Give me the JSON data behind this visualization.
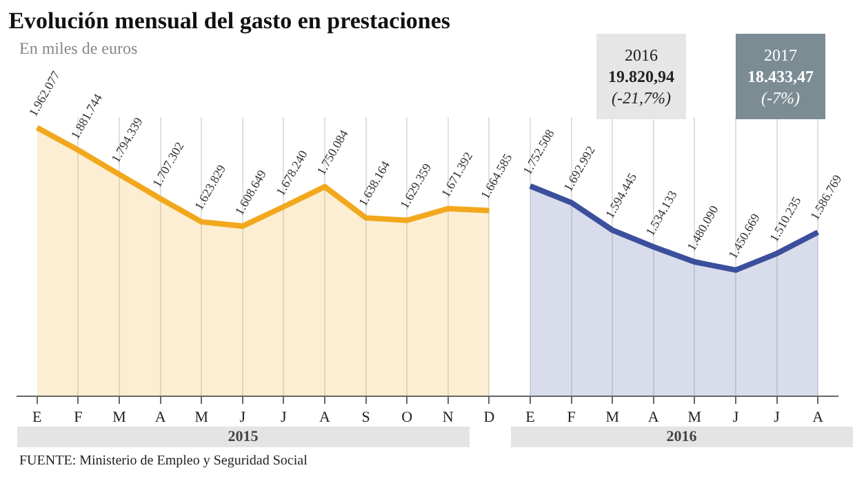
{
  "chart_data": {
    "type": "area",
    "title": "Evolución mensual del gasto en prestaciones",
    "subtitle": "En miles de euros",
    "categories": [
      "E",
      "F",
      "M",
      "A",
      "M",
      "J",
      "J",
      "A",
      "S",
      "O",
      "N",
      "D",
      "E",
      "F",
      "M",
      "A",
      "M",
      "J",
      "J",
      "A"
    ],
    "series": [
      {
        "name": null,
        "color": "#f2a81d",
        "values": [
          1962077,
          1881744,
          1794339,
          1707302,
          1623829,
          1608649,
          1678240,
          1750084,
          1638164,
          1629359,
          1671392,
          1664585,
          null,
          null,
          null,
          null,
          null,
          null,
          null,
          null
        ],
        "value_labels": [
          "1.962.077",
          "1.881.744",
          "1.794.339",
          "1.707.302",
          "1.623.829",
          "1.608.649",
          "1.678.240",
          "1.750.084",
          "1.638.164",
          "1.629.359",
          "1.671.392",
          "1.664.585",
          null,
          null,
          null,
          null,
          null,
          null,
          null,
          null
        ]
      },
      {
        "name": null,
        "color": "#3b4f9c",
        "values": [
          null,
          null,
          null,
          null,
          null,
          null,
          null,
          null,
          null,
          null,
          null,
          null,
          1752508,
          1692992,
          1594445,
          1534133,
          1480090,
          1450669,
          1510235,
          1586769
        ],
        "value_labels": [
          null,
          null,
          null,
          null,
          null,
          null,
          null,
          null,
          null,
          null,
          null,
          null,
          "1.752.508",
          "1.692.992",
          "1.594.445",
          "1.534.133",
          "1.480.090",
          "1.450.669",
          "1.510.235",
          "1.586.769"
        ]
      }
    ],
    "ylim": [
      1000000,
      2000000
    ],
    "tick_labels": "x",
    "grid": "x",
    "marker": "none",
    "line_style": "solid",
    "annotations": [
      "2015",
      "2016",
      "2016\n19.820,94\n(-21,7%)",
      "2017\n18.433,47\n(-7%)",
      "FUENTE: Ministerio de Empleo y Seguridad Social"
    ]
  }
}
